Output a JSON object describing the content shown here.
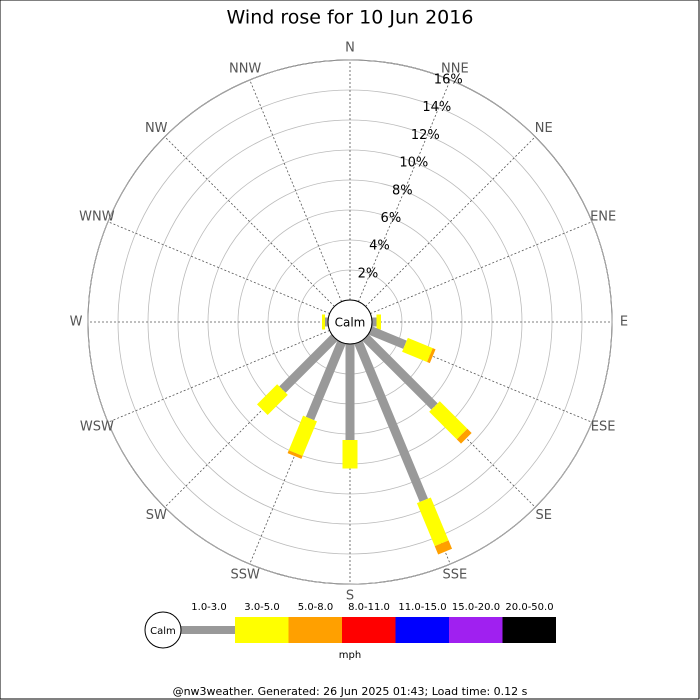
{
  "chart_data": {
    "type": "windrose",
    "title": "Wind rose for 10 Jun 2016",
    "categories": [
      "N",
      "NNE",
      "NE",
      "ENE",
      "E",
      "ESE",
      "SE",
      "SSE",
      "S",
      "SSW",
      "SW",
      "WSW",
      "W",
      "WNW",
      "NW",
      "NNW"
    ],
    "series": [
      {
        "name": "1.0-3.0",
        "color": "#999999",
        "values": [
          0,
          0,
          0,
          0,
          0.3,
          2.5,
          6.5,
          11.4,
          6.4,
          5.5,
          4.9,
          0,
          0.2,
          0,
          0,
          0
        ]
      },
      {
        "name": "3.0-5.0",
        "color": "#ffff00",
        "values": [
          0,
          0,
          0,
          0,
          0.3,
          1.8,
          2.6,
          3.1,
          1.9,
          2.5,
          1.9,
          0,
          0.2,
          0,
          0,
          0
        ]
      },
      {
        "name": "5.0-8.0",
        "color": "#ffa000",
        "values": [
          0,
          0,
          0,
          0,
          0,
          0.2,
          0.4,
          0.6,
          0,
          0.2,
          0,
          0,
          0,
          0,
          0,
          0
        ]
      },
      {
        "name": "8.0-11.0",
        "color": "#ff0000",
        "values": [
          0,
          0,
          0,
          0,
          0,
          0,
          0,
          0,
          0,
          0,
          0,
          0,
          0,
          0,
          0,
          0
        ]
      },
      {
        "name": "11.0-15.0",
        "color": "#0000ff",
        "values": [
          0,
          0,
          0,
          0,
          0,
          0,
          0,
          0,
          0,
          0,
          0,
          0,
          0,
          0,
          0,
          0
        ]
      },
      {
        "name": "15.0-20.0",
        "color": "#a020f0",
        "values": [
          0,
          0,
          0,
          0,
          0,
          0,
          0,
          0,
          0,
          0,
          0,
          0,
          0,
          0,
          0,
          0
        ]
      },
      {
        "name": "20.0-50.0",
        "color": "#000000",
        "values": [
          0,
          0,
          0,
          0,
          0,
          0,
          0,
          0,
          0,
          0,
          0,
          0,
          0,
          0,
          0,
          0
        ]
      }
    ],
    "calm_label": "Calm",
    "units": "mph",
    "ylim": [
      0,
      16
    ],
    "yticks": [
      {
        "value": 2,
        "label": "2%"
      },
      {
        "value": 4,
        "label": "4%"
      },
      {
        "value": 6,
        "label": "6%"
      },
      {
        "value": 8,
        "label": "8%"
      },
      {
        "value": 10,
        "label": "10%"
      },
      {
        "value": 12,
        "label": "12%"
      },
      {
        "value": 14,
        "label": "14%"
      },
      {
        "value": 16,
        "label": "16%"
      }
    ],
    "footer": "@nw3weather. Generated: 26 Jun 2025 01:43; Load time: 0.12 s"
  }
}
